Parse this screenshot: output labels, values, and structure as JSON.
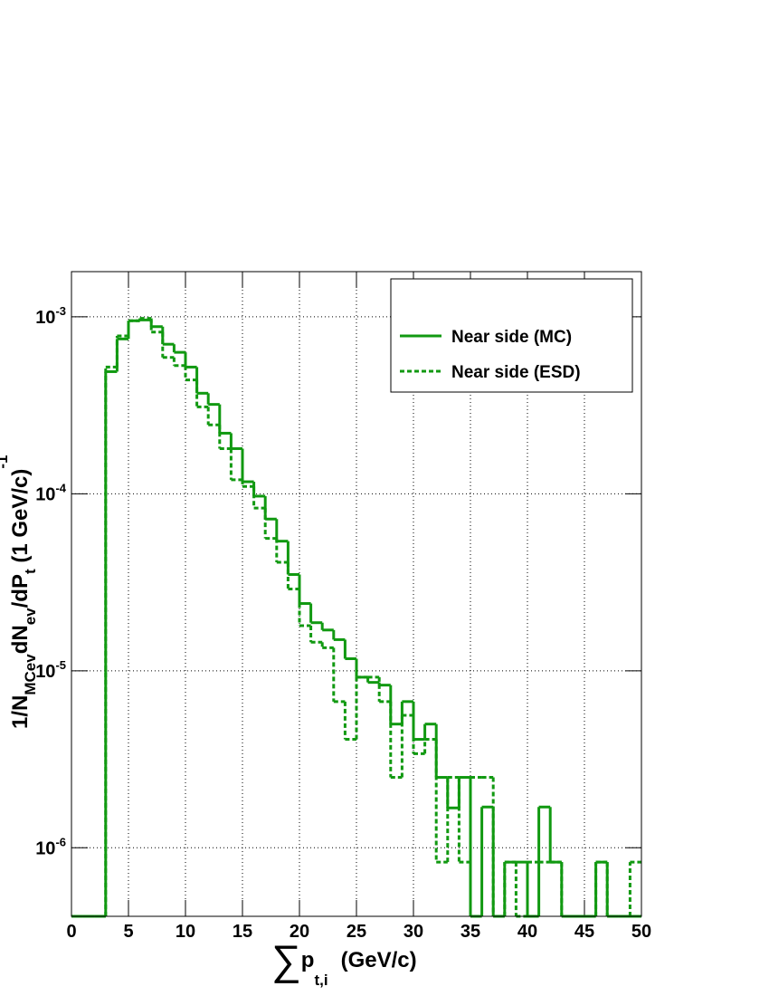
{
  "chart_data": {
    "type": "histogram",
    "x_label_parts": [
      {
        "text": "∑",
        "style": "big"
      },
      {
        "text": "p",
        "style": "normal"
      },
      {
        "text": "t,i",
        "style": "sub"
      },
      {
        "text": "(GeV/c)",
        "style": "normal"
      }
    ],
    "y_label_parts": [
      {
        "text": "1/N",
        "style": "normal"
      },
      {
        "text": "MCev",
        "style": "sub"
      },
      {
        "text": "dN",
        "style": "normal"
      },
      {
        "text": "ev",
        "style": "sub"
      },
      {
        "text": "/dP",
        "style": "normal"
      },
      {
        "text": "t",
        "style": "sub"
      },
      {
        "text": " (1 GeV/c)",
        "style": "normal"
      },
      {
        "text": "-1",
        "style": "sup"
      }
    ],
    "bins": [
      0,
      1,
      2,
      3,
      4,
      5,
      6,
      7,
      8,
      9,
      10,
      11,
      12,
      13,
      14,
      15,
      16,
      17,
      18,
      19,
      20,
      21,
      22,
      23,
      24,
      25,
      26,
      27,
      28,
      29,
      30,
      31,
      32,
      33,
      34,
      35,
      36,
      37,
      38,
      39,
      40,
      41,
      42,
      43,
      44,
      45,
      46,
      47,
      48,
      49,
      50
    ],
    "series": [
      {
        "name": "Near side (MC)",
        "color": "#119911",
        "dashed": false,
        "values": [
          0,
          0,
          0,
          0.00049,
          0.00075,
          0.00095,
          0.00096,
          0.00088,
          0.0007,
          0.00063,
          0.00052,
          0.00037,
          0.00032,
          0.00022,
          0.00018,
          0.000117,
          9.7e-05,
          7.2e-05,
          5.4e-05,
          3.5e-05,
          2.4e-05,
          1.87e-05,
          1.7e-05,
          1.5e-05,
          1.17e-05,
          9.2e-06,
          8.6e-06,
          8.3e-06,
          5e-06,
          6.7e-06,
          4.1e-06,
          5e-06,
          2.5e-06,
          1.68e-06,
          2.5e-06,
          0,
          1.7e-06,
          0,
          8.3e-07,
          8.3e-07,
          0,
          1.7e-06,
          8.3e-07,
          0,
          0,
          0,
          8.3e-07,
          0,
          0,
          0
        ]
      },
      {
        "name": "Near side (ESD)",
        "color": "#119911",
        "dashed": true,
        "values": [
          0,
          0,
          0,
          0.00052,
          0.00078,
          0.00095,
          0.00098,
          0.00082,
          0.00059,
          0.00053,
          0.00044,
          0.00031,
          0.000245,
          0.00018,
          0.00012,
          0.00011,
          8.3e-05,
          5.6e-05,
          4.1e-05,
          2.9e-05,
          1.8e-05,
          1.45e-05,
          1.35e-05,
          6.7e-06,
          4.1e-06,
          9.2e-06,
          9.2e-06,
          6.7e-06,
          2.5e-06,
          5.6e-06,
          3.4e-06,
          4.1e-06,
          8.3e-07,
          2.5e-06,
          8.3e-07,
          2.5e-06,
          2.5e-06,
          0,
          8.3e-07,
          0,
          8.3e-07,
          8.3e-07,
          8.3e-07,
          0,
          0,
          0,
          8.3e-07,
          0,
          0,
          8.3e-07
        ]
      }
    ],
    "xlim": [
      0,
      50
    ],
    "xticks": [
      0,
      5,
      10,
      15,
      20,
      25,
      30,
      35,
      40,
      45,
      50
    ],
    "ylim": [
      4.1e-07,
      0.0018
    ],
    "log_y": true,
    "yticks": [
      {
        "value": 1e-06,
        "label": "10-6"
      },
      {
        "value": 1e-05,
        "label": "10-5"
      },
      {
        "value": 0.0001,
        "label": "10-4"
      },
      {
        "value": 0.001,
        "label": "10-3"
      }
    ],
    "grid": true,
    "legend": "top-right"
  }
}
